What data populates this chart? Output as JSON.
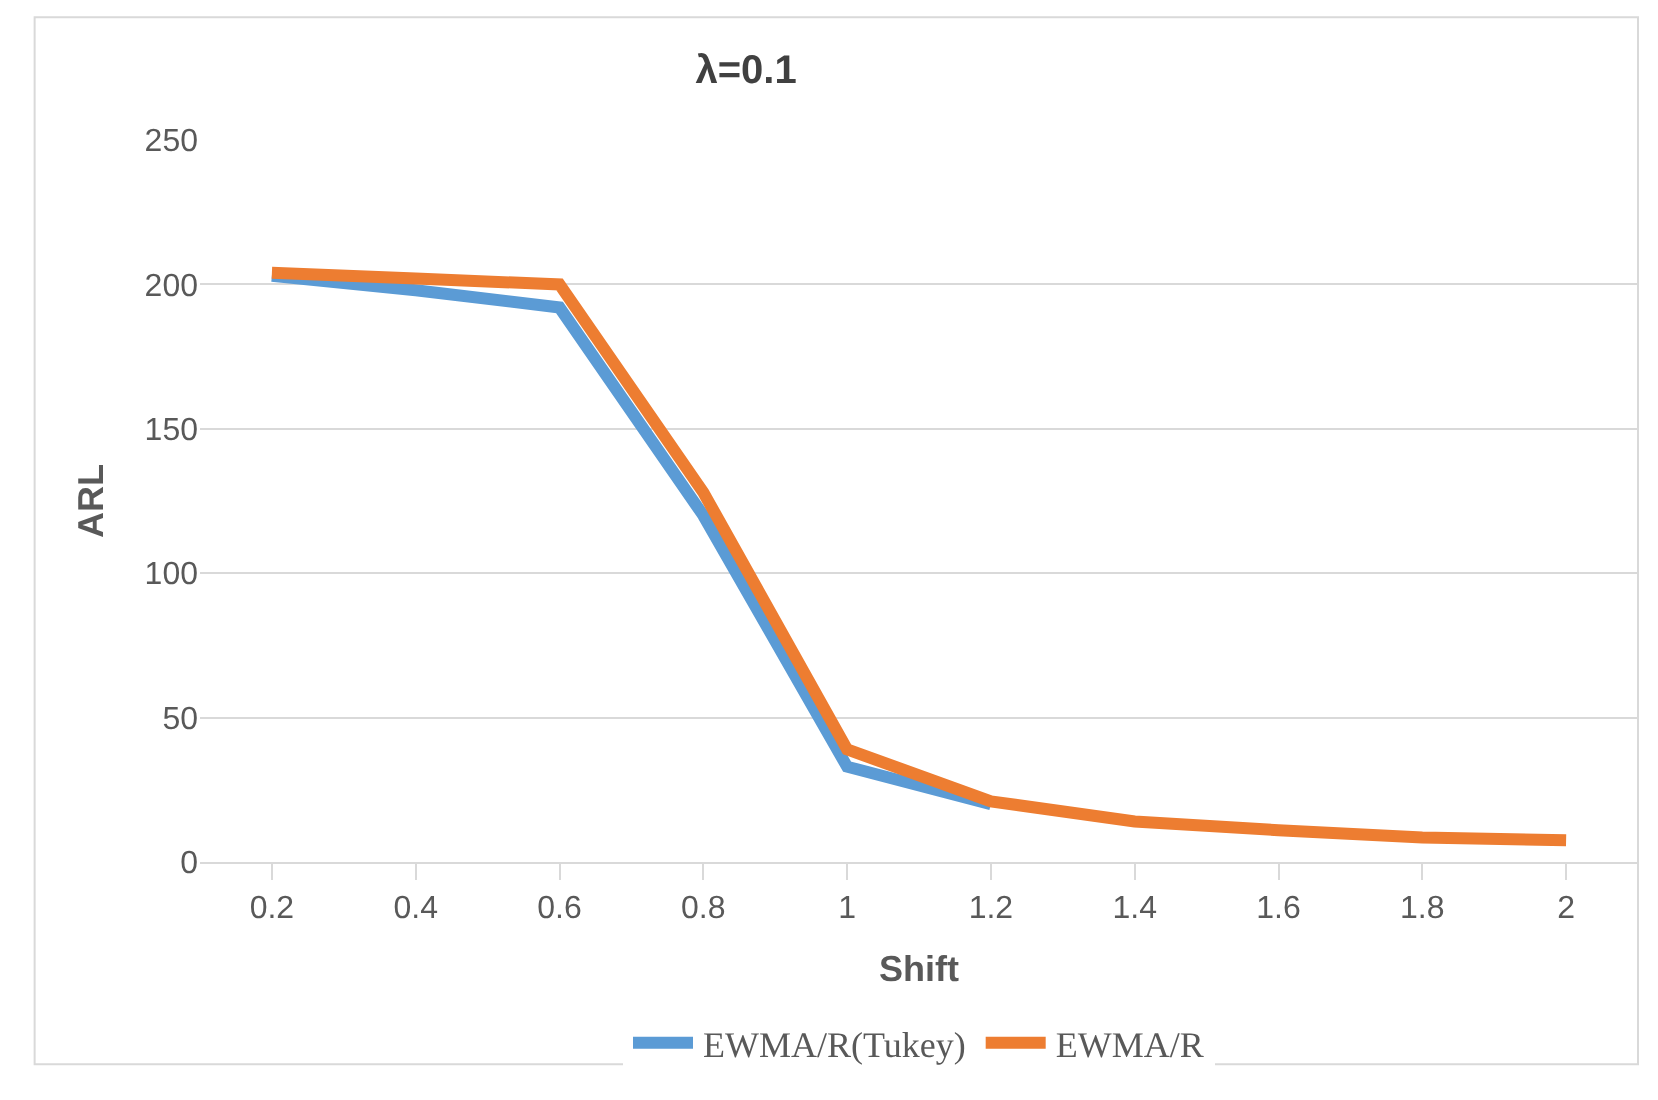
{
  "chart_data": {
    "type": "line",
    "title": "λ=0.1",
    "xlabel": "Shift",
    "ylabel": "ARL",
    "categories": [
      "0.2",
      "0.4",
      "0.6",
      "0.8",
      "1",
      "1.2",
      "1.4",
      "1.6",
      "1.8",
      "2"
    ],
    "series": [
      {
        "name": "EWMA/R(Tukey)",
        "color": "#5b9bd5",
        "values": [
          203,
          198,
          192,
          120,
          33,
          20,
          null,
          null,
          null,
          null
        ]
      },
      {
        "name": "EWMA/R",
        "color": "#ed7d31",
        "values": [
          204,
          202,
          200,
          128,
          39,
          21,
          14,
          11,
          8.5,
          7.5
        ]
      }
    ],
    "ylim": [
      0,
      250
    ],
    "yticks": [
      0,
      50,
      100,
      150,
      200,
      250
    ],
    "grid": "y",
    "legend": "bottom",
    "marker": "none",
    "line_style": "solid"
  }
}
